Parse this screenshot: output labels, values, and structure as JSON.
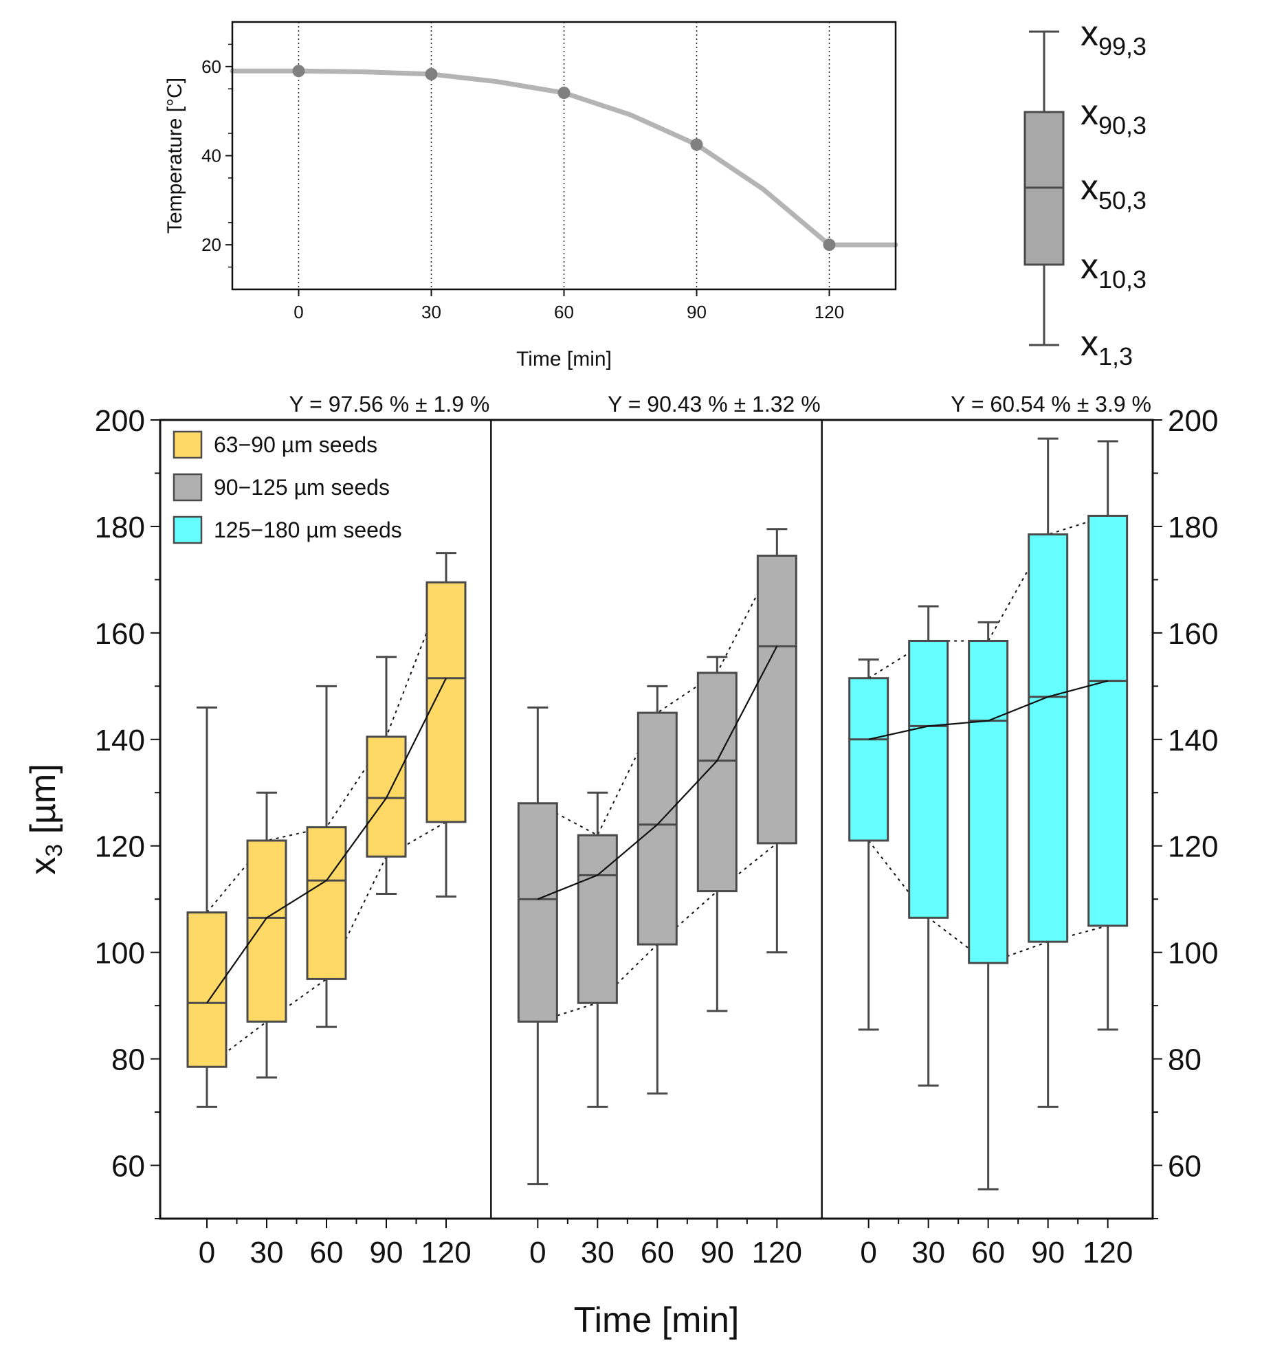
{
  "colors": {
    "series": [
      "#FFD966",
      "#B0B0B0",
      "#66FFFF"
    ],
    "box_edge": "#4a4a4a",
    "temp_line": "#b4b4b4",
    "temp_marker": "#808080",
    "median_line": "#111111"
  },
  "chart_data": [
    {
      "type": "line",
      "name": "temperature-profile",
      "title": "",
      "xlabel": "Time [min]",
      "ylabel": "Temperature [°C]",
      "xlim": [
        -15,
        135
      ],
      "ylim": [
        10,
        70
      ],
      "xticks": [
        0,
        30,
        60,
        90,
        120
      ],
      "yticks": [
        20,
        40,
        60
      ],
      "curve_x": [
        -15,
        0,
        15,
        30,
        45,
        60,
        75,
        90,
        105,
        120,
        135
      ],
      "curve_y": [
        59,
        59,
        58.8,
        58.3,
        56.6,
        54.1,
        49.2,
        42.5,
        32.5,
        20,
        20
      ],
      "markers_x": [
        0,
        30,
        60,
        90,
        120
      ],
      "markers_y": [
        59,
        58.3,
        54.1,
        42.5,
        20
      ]
    },
    {
      "type": "box",
      "name": "box-legend",
      "labels": [
        "x",
        "x",
        "x",
        "x",
        "x"
      ],
      "subscripts": [
        "99,3",
        "90,3",
        "50,3",
        "10,3",
        "1,3"
      ]
    },
    {
      "type": "box",
      "name": "particle-size-distribution",
      "xlabel": "Time [min]",
      "ylabel": "x",
      "ylabel_sub": "3",
      "ylabel_unit": " [µm]",
      "ylim": [
        50,
        200
      ],
      "yticks": [
        60,
        80,
        100,
        120,
        140,
        160,
        180,
        200
      ],
      "categories": [
        "0",
        "30",
        "60",
        "90",
        "120"
      ],
      "legend": [
        "63−90 µm seeds",
        "90−125 µm seeds",
        "125−180 µm seeds"
      ],
      "panels": [
        {
          "name": "63−90 µm seeds",
          "yield_label": "Y = 97.56 % ± 1.9 %",
          "x1": [
            71,
            76.5,
            86,
            111,
            110.5
          ],
          "x10": [
            78.5,
            87,
            95,
            118,
            124.5
          ],
          "x50": [
            90.5,
            106.5,
            113.5,
            129,
            151.5
          ],
          "x90": [
            107.5,
            121,
            123.5,
            140.5,
            169.5
          ],
          "x99": [
            146,
            130,
            150,
            155.5,
            175
          ]
        },
        {
          "name": "90−125 µm seeds",
          "yield_label": "Y = 90.43 % ± 1.32 %",
          "x1": [
            56.5,
            71,
            73.5,
            89,
            100
          ],
          "x10": [
            87,
            90.5,
            101.5,
            111.5,
            120.5
          ],
          "x50": [
            110,
            114.5,
            124,
            136,
            157.5
          ],
          "x90": [
            128,
            122,
            145,
            152.5,
            174.5
          ],
          "x99": [
            146,
            130,
            150,
            155.5,
            179.5
          ]
        },
        {
          "name": "125−180 µm seeds",
          "yield_label": "Y = 60.54 % ± 3.9 %",
          "x1": [
            85.5,
            75,
            55.5,
            71,
            85.5
          ],
          "x10": [
            121,
            106.5,
            98,
            102,
            105
          ],
          "x50": [
            140,
            142.5,
            143.5,
            148,
            151
          ],
          "x90": [
            151.5,
            158.5,
            158.5,
            178.5,
            182
          ],
          "x99": [
            155,
            165,
            162,
            196.5,
            196
          ]
        }
      ]
    }
  ]
}
